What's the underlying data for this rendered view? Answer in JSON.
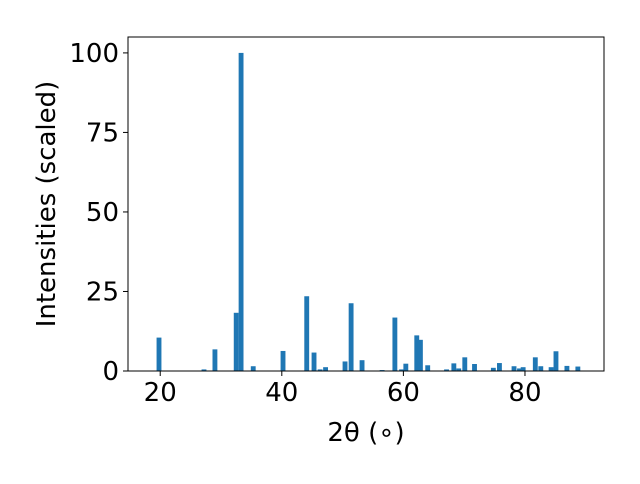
{
  "chart_data": {
    "type": "bar",
    "xlabel": "2θ (∘)",
    "ylabel": "Intensities (scaled)",
    "x": [
      19.8,
      27.2,
      29.0,
      32.5,
      33.3,
      35.3,
      40.2,
      44.1,
      45.3,
      46.3,
      47.2,
      50.4,
      51.4,
      53.2,
      56.5,
      58.6,
      59.7,
      60.4,
      62.2,
      62.8,
      64.0,
      67.1,
      68.3,
      69.1,
      70.1,
      71.7,
      74.8,
      75.8,
      78.2,
      79.1,
      79.7,
      81.7,
      82.6,
      84.3,
      85.1,
      86.9,
      88.7
    ],
    "values": [
      10.5,
      0.5,
      6.8,
      18.3,
      100,
      1.5,
      6.3,
      23.5,
      5.8,
      0.5,
      1.2,
      3,
      21.3,
      3.4,
      0.3,
      16.8,
      0.5,
      2.3,
      11.2,
      9.8,
      1.8,
      0.5,
      2.4,
      0.8,
      4.3,
      2.2,
      1,
      2.5,
      1.5,
      0.8,
      1.2,
      4.3,
      1.5,
      1.2,
      6.2,
      1.6,
      1.4
    ],
    "bar_width": 0.8,
    "color": "#1f77b4",
    "xlim": [
      14.7,
      93.0
    ],
    "xticks": [
      20,
      40,
      60,
      80
    ],
    "ylim": [
      0,
      105
    ],
    "yticks": [
      0,
      25,
      50,
      75,
      100
    ]
  }
}
